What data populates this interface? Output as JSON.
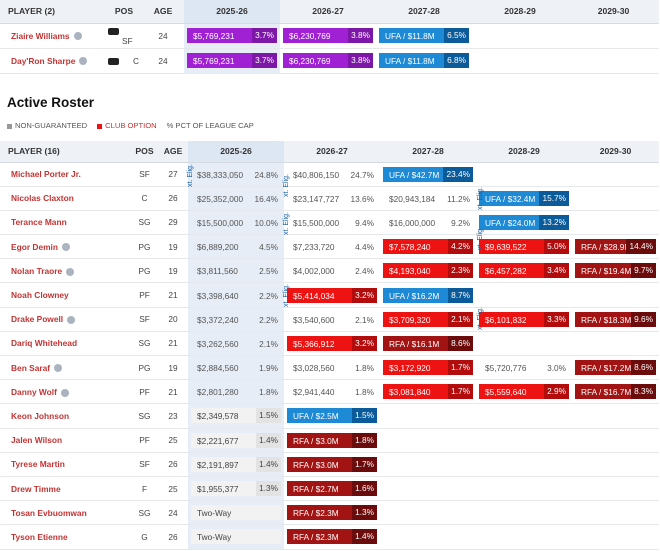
{
  "colors": {
    "accent_red": "#c43333",
    "purple": "#a020d4",
    "red": "#ee1313",
    "dark_red": "#a21313",
    "blue": "#1e8ad6"
  },
  "top": {
    "headers": [
      "PLAYER (2)",
      "POS",
      "AGE",
      "2025-26",
      "2026-27",
      "2027-28",
      "2028-29",
      "2029-30"
    ],
    "rows": [
      {
        "name": "Ziaire Williams",
        "icon": "player-status-icon",
        "tag": "card-icon",
        "pos": "SF",
        "age": "24",
        "c25": {
          "v": "$5,769,231",
          "p": "3.7%",
          "style": "purple"
        },
        "c26": {
          "v": "$6,230,769",
          "p": "3.8%",
          "style": "purple"
        },
        "c27": {
          "v": "UFA / $11.8M",
          "p": "6.5%",
          "style": "blue"
        },
        "c28": null,
        "c29": null
      },
      {
        "name": "Day'Ron Sharpe",
        "icon": "player-status-icon",
        "tag": "card-icon",
        "pos": "C",
        "age": "24",
        "c25": {
          "v": "$5,769,231",
          "p": "3.7%",
          "style": "purple"
        },
        "c26": {
          "v": "$6,230,769",
          "p": "3.8%",
          "style": "purple"
        },
        "c27": {
          "v": "UFA / $11.8M",
          "p": "6.8%",
          "style": "blue"
        },
        "c28": null,
        "c29": null
      }
    ]
  },
  "section_title": "Active Roster",
  "legend": [
    {
      "label": "NON-GUARANTEED",
      "color": "#999999",
      "marker": "square"
    },
    {
      "label": "CLUB OPTION",
      "color": "#ee1313",
      "marker": "square"
    },
    {
      "label": "PCT OF LEAGUE CAP",
      "color": "#666666",
      "marker": "percent"
    }
  ],
  "roster": {
    "headers": [
      "PLAYER (16)",
      "POS",
      "AGE",
      "2025-26",
      "2026-27",
      "2027-28",
      "2028-29",
      "2029-30"
    ],
    "elig_label": "xt. Elig.",
    "rows": [
      {
        "name": "Michael Porter Jr.",
        "pos": "SF",
        "age": "27",
        "c25": {
          "v": "$38,333,050",
          "p": "24.8%",
          "style": "plain"
        },
        "c26": {
          "v": "$40,806,150",
          "p": "24.7%",
          "style": "plain"
        },
        "c27": {
          "v": "UFA / $42.7M",
          "p": "23.4%",
          "style": "blue"
        },
        "c28": null,
        "c29": null
      },
      {
        "name": "Nicolas Claxton",
        "pos": "C",
        "age": "26",
        "c25": {
          "v": "$25,352,000",
          "p": "16.4%",
          "style": "plain"
        },
        "c26": {
          "v": "$23,147,727",
          "p": "13.6%",
          "style": "plain"
        },
        "c27": {
          "v": "$20,943,184",
          "p": "11.2%",
          "style": "plain"
        },
        "c28": {
          "v": "UFA / $32.4M",
          "p": "15.7%",
          "style": "blue"
        },
        "c29": null
      },
      {
        "name": "Terance Mann",
        "pos": "SG",
        "age": "29",
        "c25": {
          "v": "$15,500,000",
          "p": "10.0%",
          "style": "plain"
        },
        "c26": {
          "v": "$15,500,000",
          "p": "9.4%",
          "style": "plain"
        },
        "c27": {
          "v": "$16,000,000",
          "p": "9.2%",
          "style": "plain"
        },
        "c28": {
          "v": "UFA / $24.0M",
          "p": "13.2%",
          "style": "blue"
        },
        "c29": null
      },
      {
        "name": "Egor Demin",
        "icon": "player-status-icon",
        "pos": "PG",
        "age": "19",
        "c25": {
          "v": "$6,889,200",
          "p": "4.5%",
          "style": "plain"
        },
        "c26": {
          "v": "$7,233,720",
          "p": "4.4%",
          "style": "plain"
        },
        "c27": {
          "v": "$7,578,240",
          "p": "4.2%",
          "style": "red"
        },
        "c28": {
          "v": "$9,639,522",
          "p": "5.0%",
          "style": "red"
        },
        "c29": {
          "v": "RFA / $28.9M",
          "p": "14.4%",
          "style": "dred"
        }
      },
      {
        "name": "Nolan Traore",
        "icon": "player-status-icon",
        "pos": "PG",
        "age": "19",
        "c25": {
          "v": "$3,811,560",
          "p": "2.5%",
          "style": "plain"
        },
        "c26": {
          "v": "$4,002,000",
          "p": "2.4%",
          "style": "plain"
        },
        "c27": {
          "v": "$4,193,040",
          "p": "2.3%",
          "style": "red"
        },
        "c28": {
          "v": "$6,457,282",
          "p": "3.4%",
          "style": "red"
        },
        "c29": {
          "v": "RFA / $19.4M",
          "p": "9.7%",
          "style": "dred"
        }
      },
      {
        "name": "Noah Clowney",
        "pos": "PF",
        "age": "21",
        "c25": {
          "v": "$3,398,640",
          "p": "2.2%",
          "style": "plain"
        },
        "c26": {
          "v": "$5,414,034",
          "p": "3.2%",
          "style": "red"
        },
        "c27": {
          "v": "UFA / $16.2M",
          "p": "8.7%",
          "style": "blue"
        },
        "c28": null,
        "c29": null
      },
      {
        "name": "Drake Powell",
        "icon": "player-status-icon",
        "pos": "SF",
        "age": "20",
        "c25": {
          "v": "$3,372,240",
          "p": "2.2%",
          "style": "plain"
        },
        "c26": {
          "v": "$3,540,600",
          "p": "2.1%",
          "style": "plain"
        },
        "c27": {
          "v": "$3,709,320",
          "p": "2.1%",
          "style": "red"
        },
        "c28": {
          "v": "$6,101,832",
          "p": "3.3%",
          "style": "red"
        },
        "c29": {
          "v": "RFA / $18.3M",
          "p": "9.6%",
          "style": "dred"
        }
      },
      {
        "name": "Dariq Whitehead",
        "pos": "SG",
        "age": "21",
        "c25": {
          "v": "$3,262,560",
          "p": "2.1%",
          "style": "plain"
        },
        "c26": {
          "v": "$5,366,912",
          "p": "3.2%",
          "style": "red"
        },
        "c27": {
          "v": "RFA / $16.1M",
          "p": "8.6%",
          "style": "dred"
        },
        "c28": null,
        "c29": null
      },
      {
        "name": "Ben Saraf",
        "icon": "player-status-icon",
        "pos": "PG",
        "age": "19",
        "c25": {
          "v": "$2,884,560",
          "p": "1.9%",
          "style": "plain"
        },
        "c26": {
          "v": "$3,028,560",
          "p": "1.8%",
          "style": "plain"
        },
        "c27": {
          "v": "$3,172,920",
          "p": "1.7%",
          "style": "red"
        },
        "c28": {
          "v": "$5,720,776",
          "p": "3.0%",
          "style": "plain"
        },
        "c29": {
          "v": "RFA / $17.2M",
          "p": "8.6%",
          "style": "dred"
        }
      },
      {
        "name": "Danny Wolf",
        "icon": "player-status-icon",
        "pos": "PF",
        "age": "21",
        "c25": {
          "v": "$2,801,280",
          "p": "1.8%",
          "style": "plain"
        },
        "c26": {
          "v": "$2,941,440",
          "p": "1.8%",
          "style": "plain"
        },
        "c27": {
          "v": "$3,081,840",
          "p": "1.7%",
          "style": "red"
        },
        "c28": {
          "v": "$5,559,640",
          "p": "2.9%",
          "style": "red"
        },
        "c29": {
          "v": "RFA / $16.7M",
          "p": "8.3%",
          "style": "dred"
        }
      },
      {
        "name": "Keon Johnson",
        "pos": "SG",
        "age": "23",
        "c25": {
          "v": "$2,349,578",
          "p": "1.5%",
          "style": "gray"
        },
        "c26": {
          "v": "UFA / $2.5M",
          "p": "1.5%",
          "style": "blue"
        },
        "c27": null,
        "c28": null,
        "c29": null
      },
      {
        "name": "Jalen Wilson",
        "pos": "PF",
        "age": "25",
        "c25": {
          "v": "$2,221,677",
          "p": "1.4%",
          "style": "gray"
        },
        "c26": {
          "v": "RFA / $3.0M",
          "p": "1.8%",
          "style": "dred"
        },
        "c27": null,
        "c28": null,
        "c29": null
      },
      {
        "name": "Tyrese Martin",
        "pos": "SF",
        "age": "26",
        "c25": {
          "v": "$2,191,897",
          "p": "1.4%",
          "style": "gray"
        },
        "c26": {
          "v": "RFA / $3.0M",
          "p": "1.7%",
          "style": "dred"
        },
        "c27": null,
        "c28": null,
        "c29": null
      },
      {
        "name": "Drew Timme",
        "pos": "F",
        "age": "25",
        "c25": {
          "v": "$1,955,377",
          "p": "1.3%",
          "style": "gray"
        },
        "c26": {
          "v": "RFA / $2.7M",
          "p": "1.6%",
          "style": "dred"
        },
        "c27": null,
        "c28": null,
        "c29": null
      },
      {
        "name": "Tosan Evbuomwan",
        "pos": "SG",
        "age": "24",
        "c25": {
          "v": "Two-Way",
          "p": "",
          "style": "gray"
        },
        "c26": {
          "v": "RFA / $2.3M",
          "p": "1.3%",
          "style": "dred"
        },
        "c27": null,
        "c28": null,
        "c29": null
      },
      {
        "name": "Tyson Etienne",
        "pos": "G",
        "age": "26",
        "c25": {
          "v": "Two-Way",
          "p": "",
          "style": "gray"
        },
        "c26": {
          "v": "RFA / $2.3M",
          "p": "1.4%",
          "style": "dred"
        },
        "c27": null,
        "c28": null,
        "c29": null
      }
    ]
  }
}
